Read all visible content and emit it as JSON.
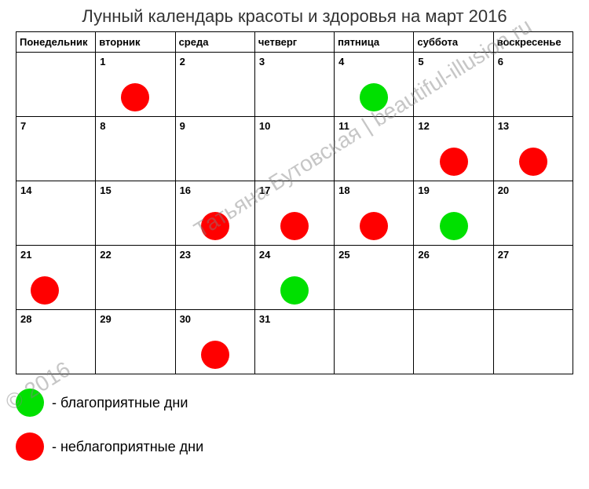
{
  "title": "Лунный календарь красоты и здоровья на март 2016",
  "weekdays": [
    "Понедельник",
    "вторник",
    "среда",
    "четверг",
    "пятница",
    "суббота",
    "воскресенье"
  ],
  "colors": {
    "favorable": "#00e000",
    "unfavorable": "#ff0000",
    "border": "#000000",
    "text": "#333333"
  },
  "weeks": [
    [
      {
        "num": "",
        "circle": null
      },
      {
        "num": "1",
        "circle": "unfavorable"
      },
      {
        "num": "2",
        "circle": null
      },
      {
        "num": "3",
        "circle": null
      },
      {
        "num": "4",
        "circle": "favorable"
      },
      {
        "num": "5",
        "circle": null
      },
      {
        "num": "6",
        "circle": null
      }
    ],
    [
      {
        "num": "7",
        "circle": null
      },
      {
        "num": "8",
        "circle": null
      },
      {
        "num": "9",
        "circle": null
      },
      {
        "num": "10",
        "circle": null
      },
      {
        "num": "11",
        "circle": null
      },
      {
        "num": "12",
        "circle": "unfavorable"
      },
      {
        "num": "13",
        "circle": "unfavorable"
      }
    ],
    [
      {
        "num": "14",
        "circle": null
      },
      {
        "num": "15",
        "circle": null
      },
      {
        "num": "16",
        "circle": "unfavorable"
      },
      {
        "num": "17",
        "circle": "unfavorable"
      },
      {
        "num": "18",
        "circle": "unfavorable"
      },
      {
        "num": "19",
        "circle": "favorable"
      },
      {
        "num": "20",
        "circle": null
      }
    ],
    [
      {
        "num": "21",
        "circle": "unfavorable",
        "pos": "left"
      },
      {
        "num": "22",
        "circle": null
      },
      {
        "num": "23",
        "circle": null
      },
      {
        "num": "24",
        "circle": "favorable"
      },
      {
        "num": "25",
        "circle": null
      },
      {
        "num": "26",
        "circle": null
      },
      {
        "num": "27",
        "circle": null
      }
    ],
    [
      {
        "num": "28",
        "circle": null
      },
      {
        "num": "29",
        "circle": null
      },
      {
        "num": "30",
        "circle": "unfavorable"
      },
      {
        "num": "31",
        "circle": null
      },
      {
        "num": "",
        "circle": null
      },
      {
        "num": "",
        "circle": null
      },
      {
        "num": "",
        "circle": null
      }
    ]
  ],
  "legend": {
    "favorable": "- благоприятные дни",
    "unfavorable": "- неблагоприятные дни"
  },
  "watermark": {
    "line1": "Татьяна Бутовская | beautiful-illusion.ru",
    "line2": "© 2016"
  }
}
